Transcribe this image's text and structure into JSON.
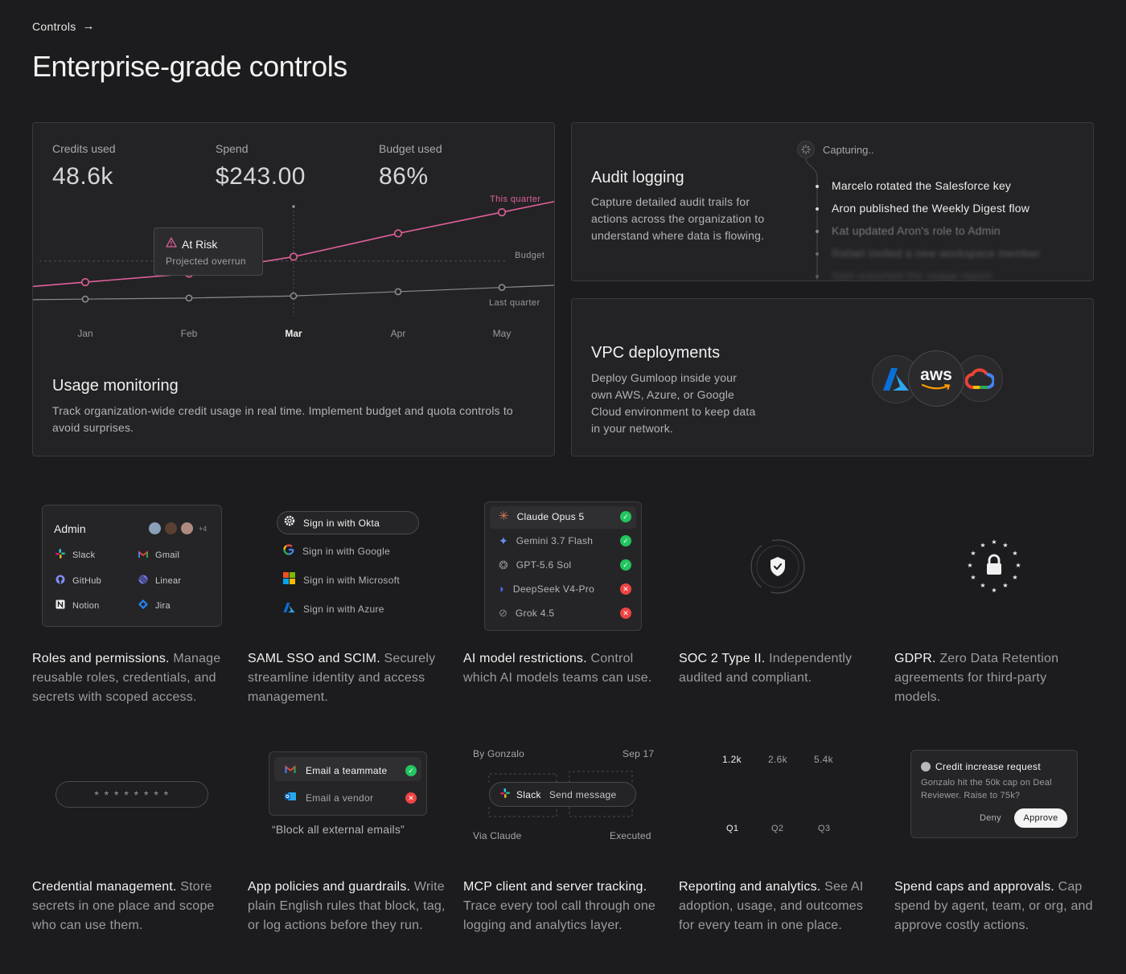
{
  "breadcrumb": {
    "label": "Controls"
  },
  "page_title": "Enterprise-grade controls",
  "usage": {
    "stats": [
      {
        "label": "Credits used",
        "value": "48.6k"
      },
      {
        "label": "Spend",
        "value": "$243.00"
      },
      {
        "label": "Budget used",
        "value": "86%"
      }
    ],
    "chart_labels": {
      "this_quarter": "This quarter",
      "budget": "Budget",
      "last_quarter": "Last quarter"
    },
    "alert": {
      "title": "At Risk",
      "subtitle": "Projected overrun"
    },
    "title": "Usage monitoring",
    "description": "Track organization-wide credit usage in real time. Implement budget and quota controls to avoid surprises."
  },
  "chart_data": {
    "type": "line",
    "categories": [
      "Jan",
      "Feb",
      "Mar",
      "Apr",
      "May"
    ],
    "highlighted_category": "Mar",
    "series": [
      {
        "name": "This quarter",
        "values": [
          0.18,
          0.26,
          0.42,
          0.64,
          0.84
        ],
        "color": "#e0609a"
      },
      {
        "name": "Last quarter",
        "values": [
          0.02,
          0.03,
          0.05,
          0.09,
          0.13
        ],
        "color": "#8a8a8e"
      }
    ],
    "reference_lines": [
      {
        "name": "Budget",
        "value": 0.38
      }
    ],
    "title": "",
    "xlabel": "",
    "ylabel": "",
    "ylim": [
      -0.1,
      1
    ],
    "grid": false
  },
  "audit": {
    "status": "Capturing..",
    "title": "Audit logging",
    "description": "Capture detailed audit trails for actions across the organization to understand where data is flowing.",
    "events": [
      "Marcelo rotated the Salesforce key",
      "Aron published the Weekly Digest flow",
      "Kat updated Aron's role to Admin",
      "Rafael invited a new workspace member",
      "Sam exported the usage report"
    ]
  },
  "vpc": {
    "title": "VPC deployments",
    "description": "Deploy Gumloop inside your own AWS, Azure, or Google Cloud environment to keep data in your network.",
    "aws_label": "aws",
    "providers": [
      "azure-icon",
      "aws-icon",
      "google-cloud-icon"
    ]
  },
  "roles": {
    "panel_title": "Admin",
    "more_count": "+4",
    "apps": [
      "Slack",
      "Gmail",
      "GitHub",
      "Linear",
      "Notion",
      "Jira"
    ],
    "title": "Roles and permissions.",
    "desc": "Manage reusable roles, credentials, and secrets with scoped access."
  },
  "sso": {
    "options": [
      "Sign in with Okta",
      "Sign in with Google",
      "Sign in with Microsoft",
      "Sign in with Azure"
    ],
    "title": "SAML SSO and SCIM.",
    "desc": "Securely streamline identity and access management."
  },
  "models": {
    "list": [
      {
        "name": "Claude Opus 5",
        "allowed": true
      },
      {
        "name": "Gemini 3.7 Flash",
        "allowed": true
      },
      {
        "name": "GPT-5.6 Sol",
        "allowed": true
      },
      {
        "name": "DeepSeek V4-Pro",
        "allowed": false
      },
      {
        "name": "Grok 4.5",
        "allowed": false
      }
    ],
    "title": "AI model restrictions.",
    "desc": "Control which AI models teams can use."
  },
  "soc2": {
    "title": "SOC 2 Type II.",
    "desc": "Independently audited and compliant."
  },
  "gdpr": {
    "title": "GDPR.",
    "desc": "Zero Data Retention agreements for third-party models."
  },
  "credentials": {
    "masked": "* * * * * * * *",
    "title": "Credential management.",
    "desc": "Store secrets in one place and scope who can use them."
  },
  "policies": {
    "items": [
      {
        "label": "Email a teammate",
        "allowed": true
      },
      {
        "label": "Email a vendor",
        "allowed": false
      }
    ],
    "quote": "“Block all external emails”",
    "title": "App policies and guardrails.",
    "desc": "Write plain English rules that block, tag, or log actions before they run."
  },
  "mcp": {
    "by": "By Gonzalo",
    "date": "Sep 17",
    "tool_app": "Slack",
    "tool_action": "Send message",
    "via": "Via Claude",
    "status": "Executed",
    "title": "MCP client and server tracking.",
    "desc": "Trace every tool call through one logging and analytics layer."
  },
  "reporting": {
    "values": [
      "1.2k",
      "2.6k",
      "5.4k"
    ],
    "quarters": [
      "Q1",
      "Q2",
      "Q3"
    ],
    "title": "Reporting and analytics.",
    "desc": "See AI adoption, usage, and outcomes for every team in one place."
  },
  "spend": {
    "request_title": "Credit increase request",
    "request_body": "Gonzalo hit the 50k cap on Deal Reviewer. Raise to 75k?",
    "deny": "Deny",
    "approve": "Approve",
    "title": "Spend caps and approvals.",
    "desc": "Cap spend by agent, team, or org, and approve costly actions."
  }
}
